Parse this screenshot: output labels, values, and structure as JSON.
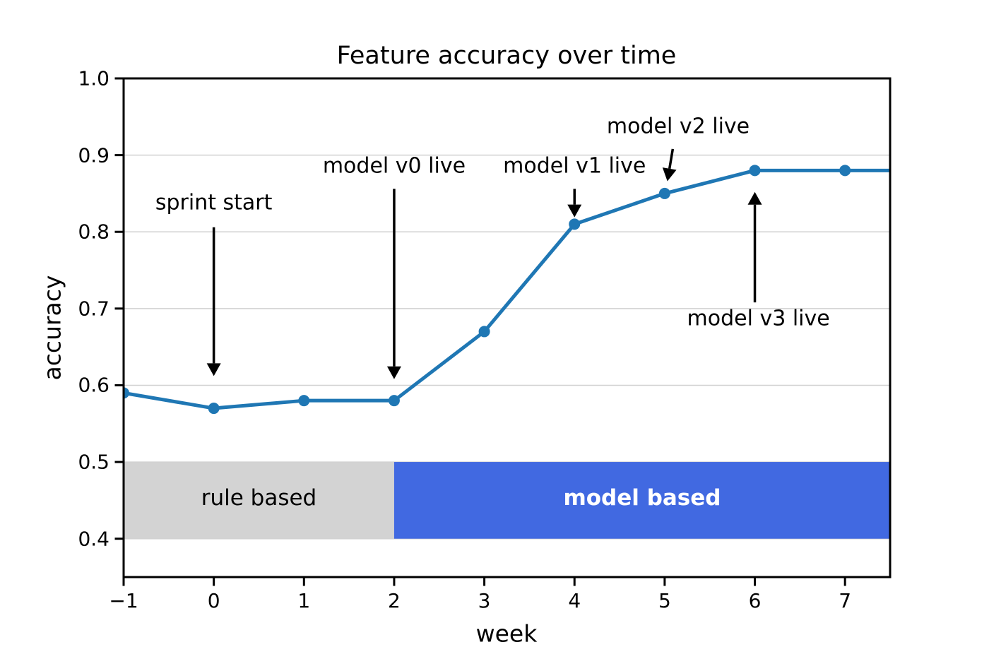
{
  "figure": {
    "background": "#ffffff"
  },
  "chart_data": {
    "type": "line",
    "title": "Feature accuracy over time",
    "xlabel": "week",
    "ylabel": "accuracy",
    "xlim": [
      -1,
      7.5
    ],
    "ylim": [
      0.35,
      1.0
    ],
    "grid": "horizontal",
    "legend": "none",
    "x_ticks": [
      {
        "value": -1,
        "label": "−1"
      },
      {
        "value": 0,
        "label": "0"
      },
      {
        "value": 1,
        "label": "1"
      },
      {
        "value": 2,
        "label": "2"
      },
      {
        "value": 3,
        "label": "3"
      },
      {
        "value": 4,
        "label": "4"
      },
      {
        "value": 5,
        "label": "5"
      },
      {
        "value": 6,
        "label": "6"
      },
      {
        "value": 7,
        "label": "7"
      }
    ],
    "y_ticks": [
      {
        "value": 0.4,
        "label": "0.4"
      },
      {
        "value": 0.5,
        "label": "0.5"
      },
      {
        "value": 0.6,
        "label": "0.6"
      },
      {
        "value": 0.7,
        "label": "0.7"
      },
      {
        "value": 0.8,
        "label": "0.8"
      },
      {
        "value": 0.9,
        "label": "0.9"
      },
      {
        "value": 1.0,
        "label": "1.0"
      }
    ],
    "series": [
      {
        "name": "feature accuracy",
        "color": "#1f77b4",
        "marker": "circle",
        "x": [
          -1,
          0,
          1,
          2,
          3,
          4,
          5,
          6,
          7
        ],
        "y": [
          0.59,
          0.57,
          0.58,
          0.58,
          0.67,
          0.81,
          0.85,
          0.88,
          0.88
        ],
        "extend_to": {
          "x": 7.5,
          "y": 0.88
        }
      }
    ],
    "bands": [
      {
        "label": "rule based",
        "from_x": -1,
        "to_x": 2,
        "y0": 0.4,
        "y1": 0.5,
        "color": "#d3d3d3",
        "label_color": "#000000",
        "label_bold": false,
        "label_x": 0.5,
        "label_y": 0.453
      },
      {
        "label": "model based",
        "from_x": 2,
        "to_x": 7.5,
        "y0": 0.4,
        "y1": 0.5,
        "color": "#4169e1",
        "label_color": "#ffffff",
        "label_bold": true,
        "label_x": 4.75,
        "label_y": 0.453
      }
    ],
    "annotations": [
      {
        "label": "sprint start",
        "text_x": 0,
        "text_y": 0.838,
        "arrow_from_x": 0,
        "arrow_from_y": 0.806,
        "arrow_to_x": 0,
        "arrow_to_y": 0.612
      },
      {
        "label": "model v0 live",
        "text_x": 2,
        "text_y": 0.886,
        "arrow_from_x": 2,
        "arrow_from_y": 0.856,
        "arrow_to_x": 2,
        "arrow_to_y": 0.608
      },
      {
        "label": "model v1 live",
        "text_x": 4,
        "text_y": 0.886,
        "arrow_from_x": 4,
        "arrow_from_y": 0.856,
        "arrow_to_x": 4,
        "arrow_to_y": 0.819
      },
      {
        "label": "model v2 live",
        "text_x": 5.15,
        "text_y": 0.937,
        "arrow_from_x": 5.09,
        "arrow_from_y": 0.908,
        "arrow_to_x": 5.03,
        "arrow_to_y": 0.866
      },
      {
        "label": "model v3 live",
        "text_x": 6.04,
        "text_y": 0.687,
        "arrow_from_x": 6.0,
        "arrow_from_y": 0.708,
        "arrow_to_x": 6.0,
        "arrow_to_y": 0.852
      }
    ]
  },
  "colors": {
    "line": "#1f77b4",
    "band_gray": "#d3d3d3",
    "band_blue": "#4169e1",
    "grid": "#d0d0d0",
    "spine": "#000000",
    "arrow": "#000000",
    "text": "#000000"
  }
}
